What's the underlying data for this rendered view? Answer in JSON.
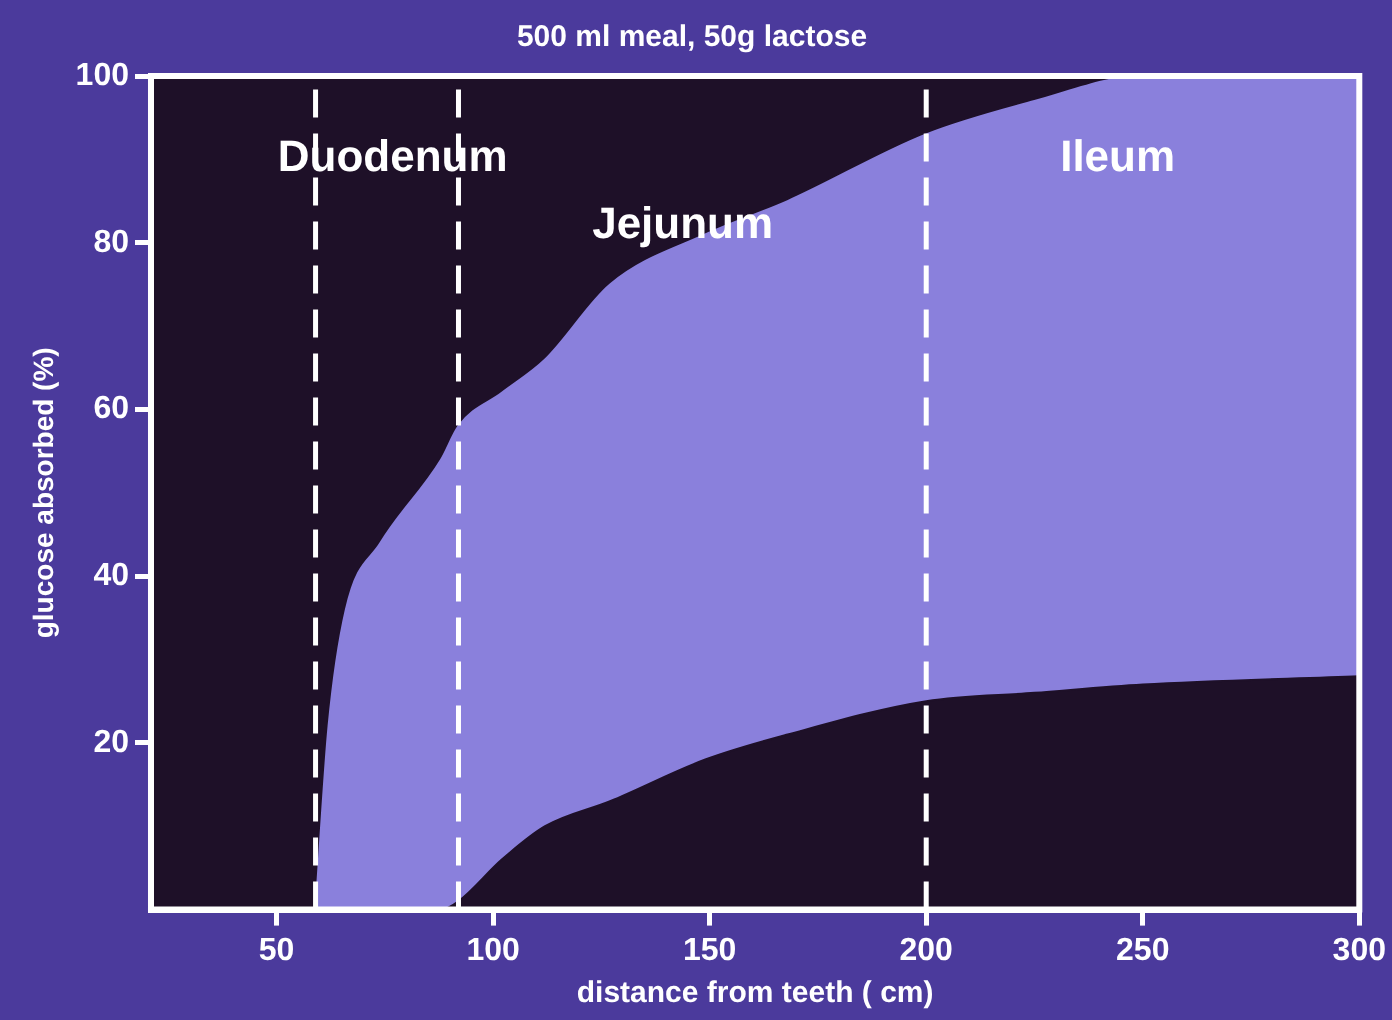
{
  "chart_data": {
    "type": "area",
    "title": "500 ml meal, 50g lactose",
    "xlabel": "distance from teeth ( cm)",
    "ylabel": "glucose absorbed (%)",
    "x": [
      59,
      62,
      66,
      74,
      88,
      92,
      102,
      112,
      127,
      149,
      168,
      200,
      225,
      250,
      300
    ],
    "series": [
      {
        "color": "#1e1028",
        "values": [
          0,
          0,
          0,
          0,
          0,
          1,
          6,
          10,
          13,
          18,
          21,
          25,
          26,
          27,
          28
        ]
      },
      {
        "color": "#8a80dc",
        "values": [
          0,
          22,
          36,
          44,
          54,
          58,
          62,
          66,
          75,
          81,
          85,
          93,
          97,
          100,
          100
        ]
      }
    ],
    "xlim": [
      21,
      300
    ],
    "xticks": [
      50,
      100,
      150,
      200,
      250,
      300
    ],
    "ylim": [
      0,
      100
    ],
    "yticks": [
      20,
      40,
      60,
      80,
      100
    ],
    "grid": false,
    "legend": false,
    "ref_lines": [
      {
        "axis": "x",
        "value": 59,
        "color": "#ffffff",
        "line_style": "dashed"
      },
      {
        "axis": "x",
        "value": 92,
        "color": "#ffffff",
        "line_style": "dashed"
      },
      {
        "axis": "x",
        "value": 200,
        "color": "#ffffff",
        "line_style": "dashed"
      }
    ],
    "annotations": [
      "Duodenum",
      "Jejunum",
      "Ileum"
    ]
  }
}
